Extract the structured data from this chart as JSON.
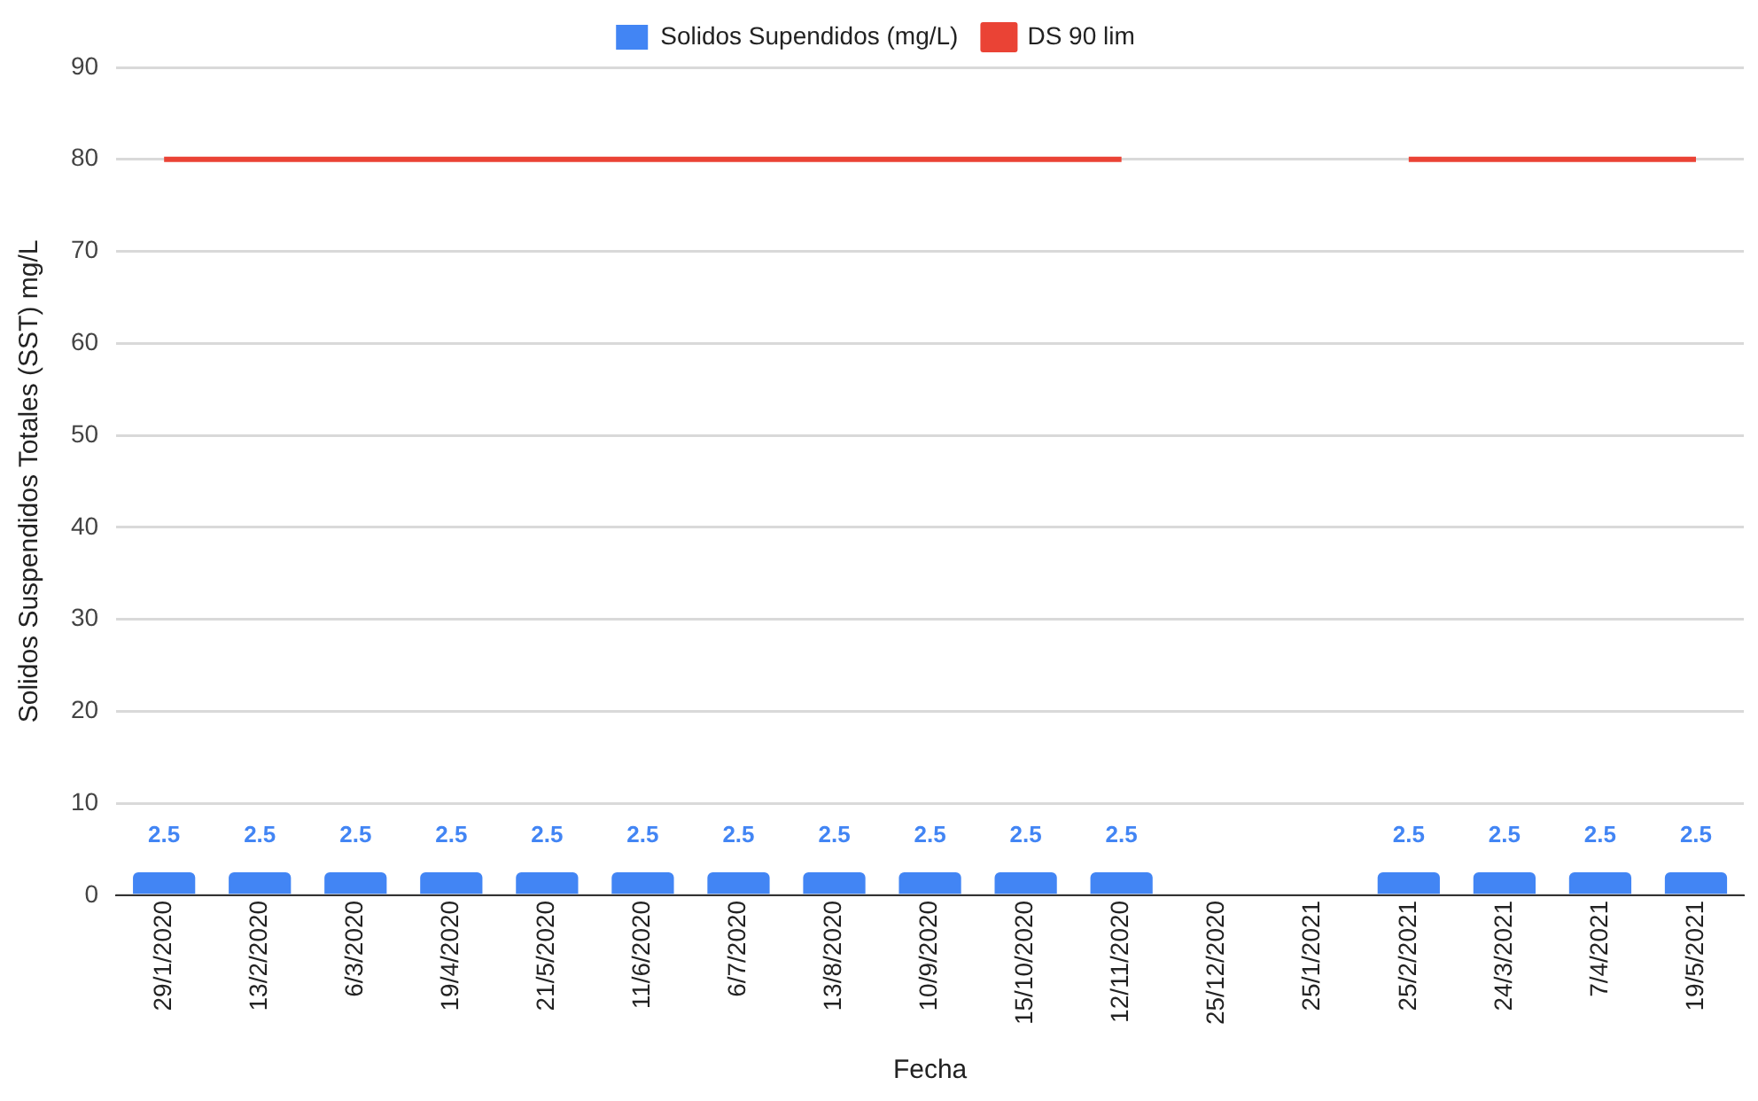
{
  "chart_data": {
    "type": "bar",
    "xlabel": "Fecha",
    "ylabel": "Solidos Suspendidos Totales (SST) mg/L",
    "categories": [
      "29/1/2020",
      "13/2/2020",
      "6/3/2020",
      "19/4/2020",
      "21/5/2020",
      "11/6/2020",
      "6/7/2020",
      "13/8/2020",
      "10/9/2020",
      "15/10/2020",
      "12/11/2020",
      "25/12/2020",
      "25/1/2021",
      "25/2/2021",
      "24/3/2021",
      "7/4/2021",
      "19/5/2021"
    ],
    "series": [
      {
        "name": "Solidos Supendidos (mg/L)",
        "color": "#4285f4",
        "values": [
          2.5,
          2.5,
          2.5,
          2.5,
          2.5,
          2.5,
          2.5,
          2.5,
          2.5,
          2.5,
          2.5,
          null,
          null,
          2.5,
          2.5,
          2.5,
          2.5
        ],
        "value_labels": [
          "2.5",
          "2.5",
          "2.5",
          "2.5",
          "2.5",
          "2.5",
          "2.5",
          "2.5",
          "2.5",
          "2.5",
          "2.5",
          null,
          null,
          "2.5",
          "2.5",
          "2.5",
          "2.5"
        ]
      },
      {
        "name": "DS 90 lim",
        "type": "line",
        "color": "#ea4335",
        "marker": "none",
        "values": [
          80,
          80,
          80,
          80,
          80,
          80,
          80,
          80,
          80,
          80,
          80,
          null,
          null,
          80,
          80,
          80,
          80
        ]
      }
    ],
    "ylim": [
      0,
      90
    ],
    "yticks": [
      0,
      10,
      20,
      30,
      40,
      50,
      60,
      70,
      80,
      90
    ],
    "grid": "y",
    "legend": "top"
  }
}
